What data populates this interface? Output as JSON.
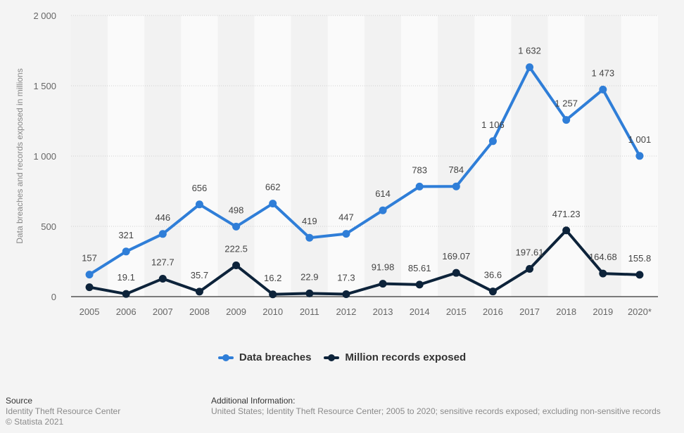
{
  "chart_data": {
    "type": "line",
    "title": "",
    "xlabel": "",
    "ylabel": "Data breaches and records exposed in millions",
    "ylim": [
      0,
      2000
    ],
    "yticks": [
      0,
      500,
      1000,
      1500,
      2000
    ],
    "ytick_labels": [
      "0",
      "500",
      "1 000",
      "1 500",
      "2 000"
    ],
    "grid": true,
    "legend_position": "bottom",
    "categories": [
      "2005",
      "2006",
      "2007",
      "2008",
      "2009",
      "2010",
      "2011",
      "2012",
      "2013",
      "2014",
      "2015",
      "2016",
      "2017",
      "2018",
      "2019",
      "2020*"
    ],
    "series": [
      {
        "name": "Data breaches",
        "color": "#2f7ed8",
        "values": [
          157,
          321,
          446,
          656,
          498,
          662,
          419,
          447,
          614,
          783,
          784,
          1106,
          1632,
          1257,
          1473,
          1001
        ],
        "labels": [
          "157",
          "321",
          "446",
          "656",
          "498",
          "662",
          "419",
          "447",
          "614",
          "783",
          "784",
          "1 106",
          "1 632",
          "1 257",
          "1 473",
          "1 001"
        ]
      },
      {
        "name": "Million records exposed",
        "color": "#0d233a",
        "values": [
          66.9,
          19.1,
          127.7,
          35.7,
          222.5,
          16.2,
          22.9,
          17.3,
          91.98,
          85.61,
          169.07,
          36.6,
          197.61,
          471.23,
          164.68,
          155.8
        ],
        "labels": [
          "",
          "19.1",
          "127.7",
          "35.7",
          "222.5",
          "16.2",
          "22.9",
          "17.3",
          "91.98",
          "85.61",
          "169.07",
          "36.6",
          "197.61",
          "471.23",
          "164.68",
          "155.8"
        ]
      }
    ]
  },
  "footer": {
    "source_heading": "Source",
    "source_name": "Identity Theft Resource Center",
    "copyright": "© Statista 2021",
    "info_heading": "Additional Information:",
    "info_text": "United States; Identity Theft Resource Center; 2005 to 2020; sensitive records exposed; excluding non-sensitive records"
  }
}
